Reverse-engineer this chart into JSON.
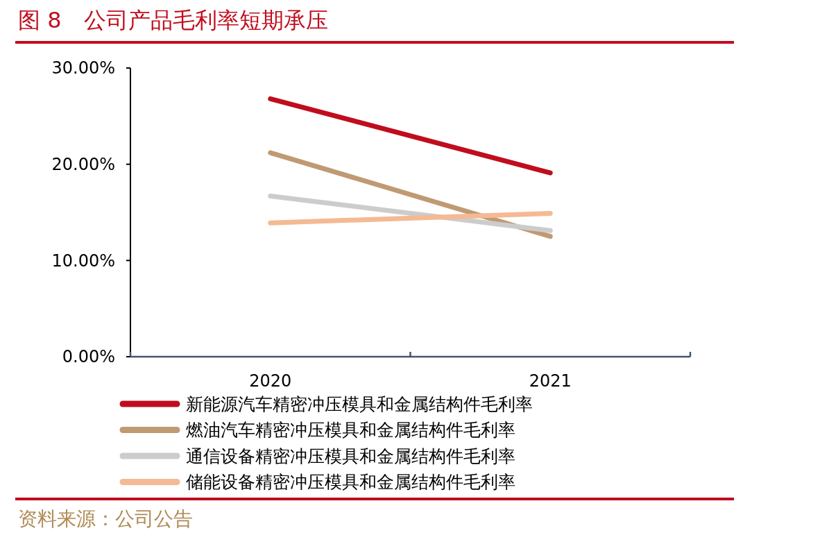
{
  "chart_data": {
    "type": "line",
    "title": "图 8　公司产品毛利率短期承压",
    "categories": [
      "2020",
      "2021"
    ],
    "series": [
      {
        "name": "新能源汽车精密冲压模具和金属结构件毛利率",
        "color": "#c00d1e",
        "values": [
          26.8,
          19.1
        ]
      },
      {
        "name": "燃油汽车精密冲压模具和金属结构件毛利率",
        "color": "#bf9a72",
        "values": [
          21.2,
          12.5
        ]
      },
      {
        "name": "通信设备精密冲压模具和金属结构件毛利率",
        "color": "#cccccc",
        "values": [
          16.7,
          13.1
        ]
      },
      {
        "name": "储能设备精密冲压模具和金属结构件毛利率",
        "color": "#f5b993",
        "values": [
          13.9,
          14.9
        ]
      }
    ],
    "ylim": [
      0,
      30
    ],
    "yticks": [
      {
        "value": 0,
        "label": "0.00%"
      },
      {
        "value": 10,
        "label": "10.00%"
      },
      {
        "value": 20,
        "label": "20.00%"
      },
      {
        "value": 30,
        "label": "30.00%"
      }
    ],
    "grid": false,
    "legend": "bottom",
    "marker": "none",
    "line_style": "solid",
    "annotations": [
      "资料来源：公司公告"
    ]
  }
}
